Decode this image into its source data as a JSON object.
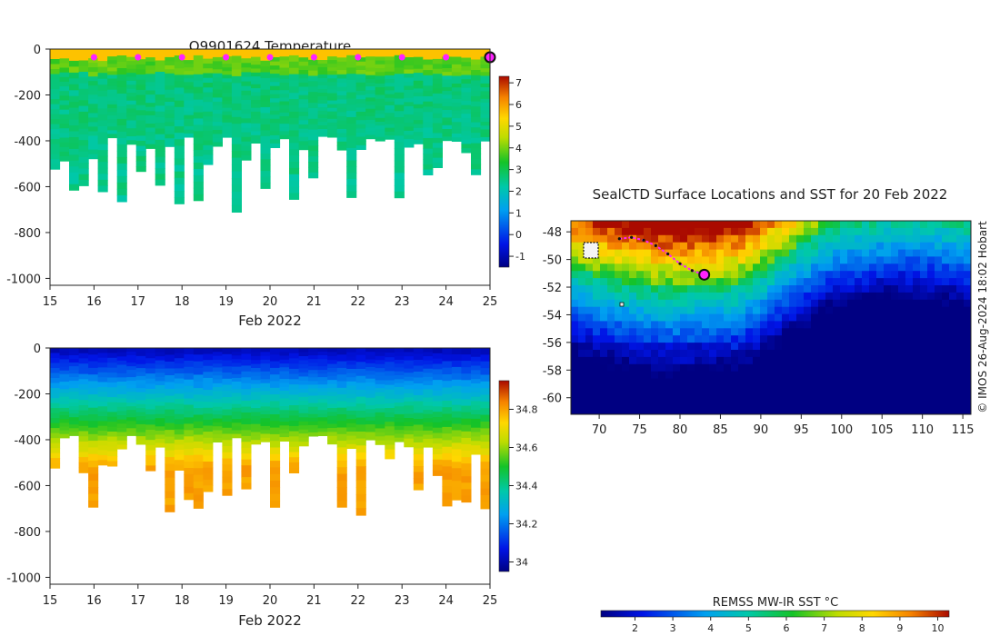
{
  "chart_data": [
    {
      "id": "temperature",
      "type": "heatmap",
      "title": "Q9901624  Temperature",
      "xlabel": "Feb 2022",
      "x_ticks": [
        "15",
        "16",
        "17",
        "18",
        "19",
        "20",
        "21",
        "22",
        "23",
        "24",
        "25"
      ],
      "xlim": [
        15,
        25
      ],
      "ylim": [
        -1030,
        0
      ],
      "y_ticks": [
        "0",
        "-200",
        "-400",
        "-600",
        "-800",
        "-1000"
      ],
      "y_tick_values": [
        0,
        -200,
        -400,
        -600,
        -800,
        -1000
      ],
      "colorbar": {
        "min": -1.5,
        "max": 7.3,
        "ticks": [
          "-1",
          "0",
          "1",
          "2",
          "3",
          "4",
          "5",
          "6",
          "7"
        ],
        "tick_values": [
          -1,
          0,
          1,
          2,
          3,
          4,
          5,
          6,
          7
        ]
      },
      "marker_days": [
        16,
        17,
        18,
        19,
        20,
        21,
        22,
        23,
        24
      ],
      "last_position_day": 25
    },
    {
      "id": "salinity",
      "type": "heatmap",
      "title": "",
      "xlabel": "Feb 2022",
      "x_ticks": [
        "15",
        "16",
        "17",
        "18",
        "19",
        "20",
        "21",
        "22",
        "23",
        "24",
        "25"
      ],
      "xlim": [
        15,
        25
      ],
      "ylim": [
        -1030,
        0
      ],
      "y_ticks": [
        "0",
        "-200",
        "-400",
        "-600",
        "-800",
        "-1000"
      ],
      "y_tick_values": [
        0,
        -200,
        -400,
        -600,
        -800,
        -1000
      ],
      "colorbar": {
        "min": 33.95,
        "max": 34.95,
        "ticks": [
          "34",
          "34.2",
          "34.4",
          "34.6",
          "34.8"
        ],
        "tick_values": [
          34,
          34.2,
          34.4,
          34.6,
          34.8
        ]
      }
    },
    {
      "id": "sst_map",
      "type": "heatmap",
      "title": "SealCTD Surface Locations and SST for 20 Feb 2022",
      "x_ticks": [
        "70",
        "75",
        "80",
        "85",
        "90",
        "95",
        "100",
        "105",
        "110",
        "115"
      ],
      "x_tick_values": [
        70,
        75,
        80,
        85,
        90,
        95,
        100,
        105,
        110,
        115
      ],
      "y_ticks": [
        "-48",
        "-50",
        "-52",
        "-54",
        "-56",
        "-58",
        "-60"
      ],
      "y_tick_values": [
        -48,
        -50,
        -52,
        -54,
        -56,
        -58,
        -60
      ],
      "xlim": [
        66.5,
        116
      ],
      "ylim": [
        -61.2,
        -47.2
      ],
      "credit": "© IMOS 26-Aug-2024 18:02 Hobart",
      "colorbar_label": "REMSS MW-IR SST °C",
      "colorbar": {
        "min": 1.1,
        "max": 10.3,
        "ticks": [
          "2",
          "3",
          "4",
          "5",
          "6",
          "7",
          "8",
          "9",
          "10"
        ],
        "tick_values": [
          2,
          3,
          4,
          5,
          6,
          7,
          8,
          9,
          10
        ]
      },
      "track": [
        [
          72.5,
          -48.5
        ],
        [
          74,
          -48.4
        ],
        [
          75.5,
          -48.6
        ],
        [
          77,
          -49
        ],
        [
          78.5,
          -49.6
        ],
        [
          80,
          -50.3
        ],
        [
          81.5,
          -50.8
        ],
        [
          83,
          -51.1
        ]
      ],
      "last_position": [
        83,
        -51.1
      ]
    }
  ]
}
